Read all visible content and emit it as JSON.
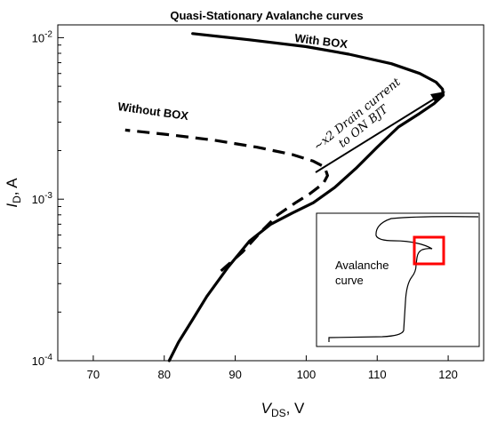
{
  "chart_data": {
    "type": "line",
    "title": "Quasi-Stationary Avalanche curves",
    "xlabel": "V",
    "xlabel_sub": "DS",
    "xlabel_unit": ", V",
    "ylabel": "I",
    "ylabel_sub": "D",
    "ylabel_unit": ", A",
    "xlim": [
      65,
      125
    ],
    "ylim": [
      0.0001,
      0.012
    ],
    "y_scale": "log",
    "x_ticks": [
      70,
      80,
      90,
      100,
      110,
      120
    ],
    "x_tick_labels": [
      "70",
      "80",
      "90",
      "100",
      "110",
      "120"
    ],
    "y_ticks": [
      0.0001,
      0.001,
      0.01
    ],
    "y_tick_base": "10",
    "y_tick_exponents": [
      "-4",
      "-3",
      "-2"
    ],
    "grid": false,
    "series": [
      {
        "name": "With BOX",
        "line_style": "solid",
        "points": [
          [
            80.7,
            0.0001
          ],
          [
            82,
            0.00013
          ],
          [
            84,
            0.00018
          ],
          [
            86,
            0.00025
          ],
          [
            89,
            0.00038
          ],
          [
            92,
            0.00055
          ],
          [
            95,
            0.0007
          ],
          [
            98,
            0.00082
          ],
          [
            101,
            0.00095
          ],
          [
            104,
            0.00118
          ],
          [
            107,
            0.00155
          ],
          [
            110,
            0.0021
          ],
          [
            113,
            0.0028
          ],
          [
            116,
            0.0034
          ],
          [
            118,
            0.0039
          ],
          [
            119.3,
            0.0044
          ],
          [
            119.2,
            0.0048
          ],
          [
            118.3,
            0.0053
          ],
          [
            116,
            0.006
          ],
          [
            112,
            0.0069
          ],
          [
            106,
            0.0079
          ],
          [
            100,
            0.0088
          ],
          [
            92,
            0.0097
          ],
          [
            84,
            0.0106
          ]
        ]
      },
      {
        "name": "Without BOX",
        "line_style": "dashed",
        "points": [
          [
            88,
            0.00036
          ],
          [
            91,
            0.00047
          ],
          [
            93.5,
            0.00062
          ],
          [
            96,
            0.0008
          ],
          [
            98.5,
            0.00095
          ],
          [
            100.5,
            0.00108
          ],
          [
            102.4,
            0.00125
          ],
          [
            103,
            0.0014
          ],
          [
            102.6,
            0.00158
          ],
          [
            101,
            0.00172
          ],
          [
            98,
            0.00189
          ],
          [
            93,
            0.0021
          ],
          [
            87,
            0.00232
          ],
          [
            81,
            0.0025
          ],
          [
            74.5,
            0.00268
          ]
        ]
      }
    ],
    "annotations": [
      {
        "text": "~x2 Drain current",
        "line": 1
      },
      {
        "text": "to ON BJT",
        "line": 2
      }
    ],
    "inset": {
      "label_line1": "Avalanche",
      "label_line2": "curve",
      "highlight_color": "#ff0000"
    }
  },
  "colors": {
    "line": "#000000",
    "highlight": "#ff0000",
    "background": "#ffffff"
  }
}
